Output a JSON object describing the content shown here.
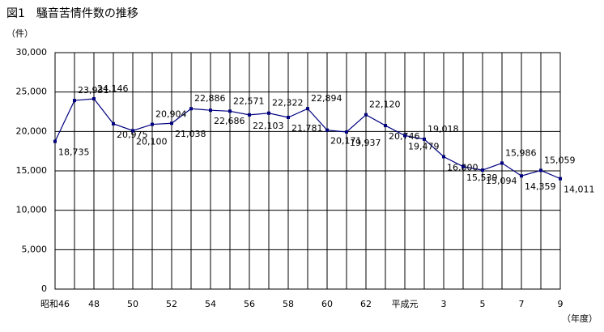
{
  "chart_data": {
    "type": "line",
    "title": "図1　騒音苦情件数の推移",
    "y_label": "（件）",
    "x_label": "（年度）",
    "categories": [
      "昭和46",
      null,
      "48",
      null,
      "50",
      null,
      "52",
      null,
      "54",
      null,
      "56",
      null,
      "58",
      null,
      "60",
      null,
      "62",
      null,
      "平成元",
      null,
      "3",
      null,
      "5",
      null,
      "7",
      null,
      "9"
    ],
    "series": [
      {
        "name": "騒音苦情件数",
        "color": "#000080",
        "values": [
          18735,
          23931,
          24146,
          20975,
          20100,
          20904,
          21038,
          22886,
          22686,
          22571,
          22103,
          22322,
          21781,
          22894,
          20171,
          19937,
          22120,
          20746,
          19479,
          19018,
          16800,
          15539,
          15094,
          15986,
          14359,
          15059,
          14011
        ],
        "value_labels": [
          "18,735",
          "23,931",
          "24,146",
          "20,975",
          "20,100",
          "20,904",
          "21,038",
          "22,886",
          "22,686",
          "22,571",
          "22,103",
          "22,322",
          "21,781",
          "22,894",
          "20,171",
          "19,937",
          "22,120",
          "20,746",
          "19,479",
          "19,018",
          "16,800",
          "15,539",
          "15,094",
          "15,986",
          "14,359",
          "15,059",
          "14,011"
        ]
      }
    ],
    "ylim": [
      0,
      30000
    ],
    "yticks": [
      0,
      {
        "value": 5000,
        "label": "5,000"
      },
      {
        "value": 10000,
        "label": "10,000"
      },
      {
        "value": 15000,
        "label": "15,000"
      },
      {
        "value": 20000,
        "label": "20,000"
      },
      {
        "value": 25000,
        "label": "25,000"
      },
      {
        "value": 30000,
        "label": "30,000"
      }
    ],
    "grid": true
  }
}
